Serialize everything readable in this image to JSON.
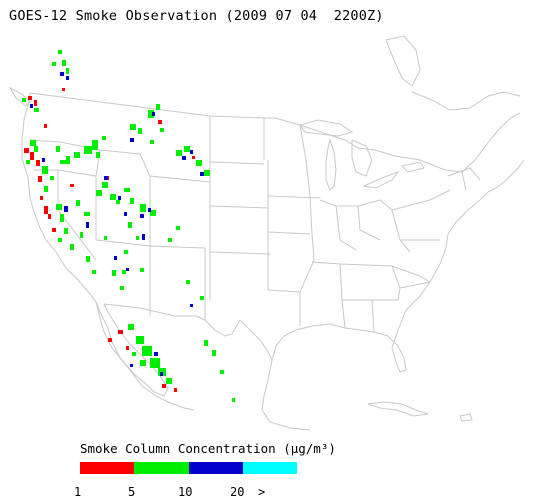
{
  "title": "GOES-12 Smoke Observation (2009 07 04  2200Z)",
  "legend": {
    "title": "Smoke Column Concentration (μg/m³)",
    "segments": [
      {
        "color": "#ff0000"
      },
      {
        "color": "#00ee00"
      },
      {
        "color": "#0000cc"
      },
      {
        "color": "#00ffff"
      }
    ],
    "ticks": [
      "1",
      "5",
      "10",
      "20",
      ">"
    ]
  },
  "map": {
    "line_color": "#c8c8c8",
    "smoke_regions": [
      {
        "region": "Pacific Northwest",
        "levels": [
          "1-5",
          "5-10",
          "10-20"
        ]
      },
      {
        "region": "Northern Rockies",
        "levels": [
          "1-5",
          "5-10",
          "10-20"
        ]
      },
      {
        "region": "California",
        "levels": [
          "1-5",
          "5-10"
        ]
      },
      {
        "region": "Great Basin",
        "levels": [
          "5-10",
          "10-20"
        ]
      },
      {
        "region": "Baja California / Gulf of California",
        "levels": [
          "1-5",
          "5-10",
          "10-20"
        ]
      }
    ]
  }
}
